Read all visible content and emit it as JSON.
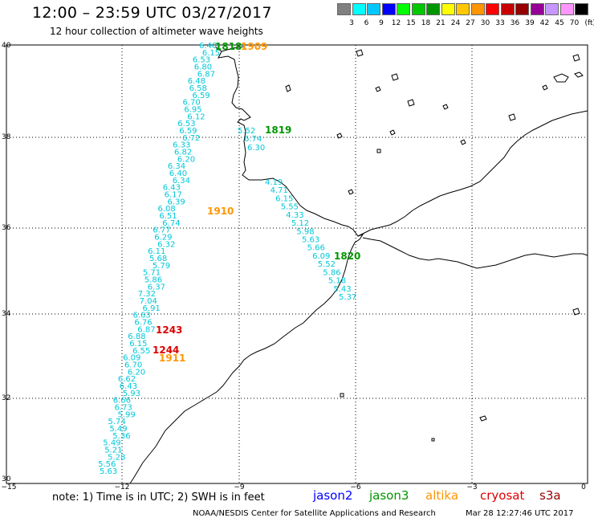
{
  "header": {
    "title": "12:00 – 23:59 UTC 03/27/2017",
    "subtitle": "12 hour collection of altimeter wave heights"
  },
  "legend": {
    "unit": "(ft)",
    "bins": [
      {
        "label": "3",
        "color": "#808080"
      },
      {
        "label": "6",
        "color": "#00ffff"
      },
      {
        "label": "9",
        "color": "#00c8ff"
      },
      {
        "label": "12",
        "color": "#0000ff"
      },
      {
        "label": "15",
        "color": "#00ff00"
      },
      {
        "label": "18",
        "color": "#00c800"
      },
      {
        "label": "21",
        "color": "#009600"
      },
      {
        "label": "24",
        "color": "#ffff00"
      },
      {
        "label": "27",
        "color": "#ffc800"
      },
      {
        "label": "30",
        "color": "#ff9600"
      },
      {
        "label": "33",
        "color": "#ff0000"
      },
      {
        "label": "36",
        "color": "#c80000"
      },
      {
        "label": "39",
        "color": "#960000"
      },
      {
        "label": "42",
        "color": "#960096"
      },
      {
        "label": "45",
        "color": "#c896ff"
      },
      {
        "label": "70",
        "color": "#ff96ff"
      },
      {
        "label": "",
        "color": "#000000"
      }
    ]
  },
  "axes": {
    "lat_ticks": [
      "40",
      "38",
      "36",
      "34",
      "32",
      "30"
    ],
    "lon_ticks": [
      "−15",
      "−12",
      "−9",
      "−6",
      "−3",
      "0"
    ]
  },
  "time_labels": [
    {
      "text": "1818",
      "color": "#009600"
    },
    {
      "text": "1909",
      "color": "#ff9600"
    },
    {
      "text": "1819",
      "color": "#009600"
    },
    {
      "text": "1910",
      "color": "#ff9600"
    },
    {
      "text": "1820",
      "color": "#009600"
    },
    {
      "text": "1243",
      "color": "#dd0000"
    },
    {
      "text": "1244",
      "color": "#dd0000"
    },
    {
      "text": "1911",
      "color": "#ff9600"
    }
  ],
  "tracks": {
    "color": "#00c8d8",
    "west_track": [
      "6.40",
      "6.15",
      "6.53",
      "6.80",
      "6.87",
      "6.48",
      "6.58",
      "6.59",
      "6.70",
      "6.95",
      "6.12",
      "6.53",
      "6.59",
      "6.72",
      "6.33",
      "6.82",
      "6.20",
      "6.34",
      "6.40",
      "6.34",
      "6.43",
      "6.17",
      "6.39",
      "6.08",
      "6.51",
      "6.74",
      "6.77",
      "6.29",
      "6.32",
      "6.11",
      "5.68",
      "5.79",
      "5.71",
      "5.86",
      "6.37",
      "7.32",
      "7.04",
      "6.91",
      "6.63",
      "6.76",
      "6.87",
      "6.88",
      "6.15",
      "6.55",
      "6.09",
      "6.70",
      "6.20",
      "6.62",
      "6.43",
      "5.93",
      "6.66",
      "6.73",
      "5.99",
      "5.74",
      "5.49",
      "5.36",
      "5.49",
      "5.21",
      "5.28",
      "5.56",
      "5.63"
    ],
    "coastal_track": [
      "5.52",
      "6.74",
      "6.30"
    ],
    "southeast_track": [
      "4.19",
      "4.71",
      "6.15",
      "5.55",
      "4.33",
      "5.12",
      "5.98",
      "5.63",
      "5.66",
      "6.09",
      "5.52",
      "5.86",
      "5.18",
      "5.43",
      "5.37"
    ]
  },
  "footer": {
    "note": "note: 1) Time is in UTC; 2) SWH is in feet",
    "satellites": [
      {
        "name": "jason2",
        "color": "#0000ff"
      },
      {
        "name": "jason3",
        "color": "#009600"
      },
      {
        "name": "altika",
        "color": "#ff9600"
      },
      {
        "name": "cryosat",
        "color": "#dd0000"
      },
      {
        "name": "s3a",
        "color": "#990000"
      }
    ],
    "credit": "NOAA/NESDIS Center for Satellite Applications and Research",
    "timestamp": "Mar 28 12:27:46 UTC 2017"
  }
}
